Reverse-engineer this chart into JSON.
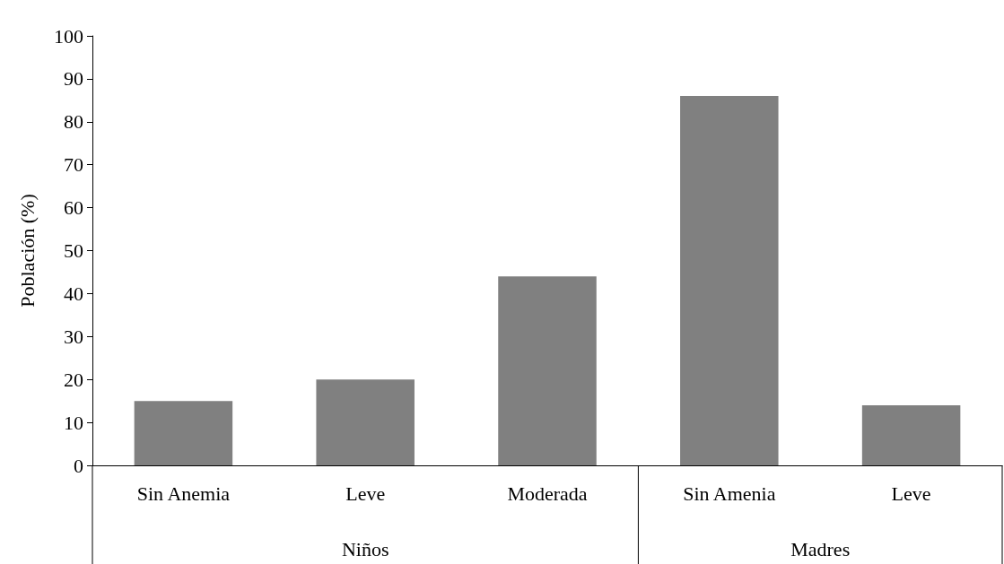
{
  "chart_data": {
    "type": "bar",
    "ylabel": "Población (%)",
    "categories": [
      "Sin Anemia",
      "Leve",
      "Moderada",
      "Sin Amenia",
      "Leve"
    ],
    "values": [
      15,
      20,
      44,
      86,
      14
    ],
    "color": "#808080",
    "ylim": [
      0,
      100
    ],
    "yticks": [
      0,
      10,
      20,
      30,
      40,
      50,
      60,
      70,
      80,
      90,
      100
    ],
    "grid": false,
    "annotations": [
      "Niños",
      "Madres"
    ]
  }
}
